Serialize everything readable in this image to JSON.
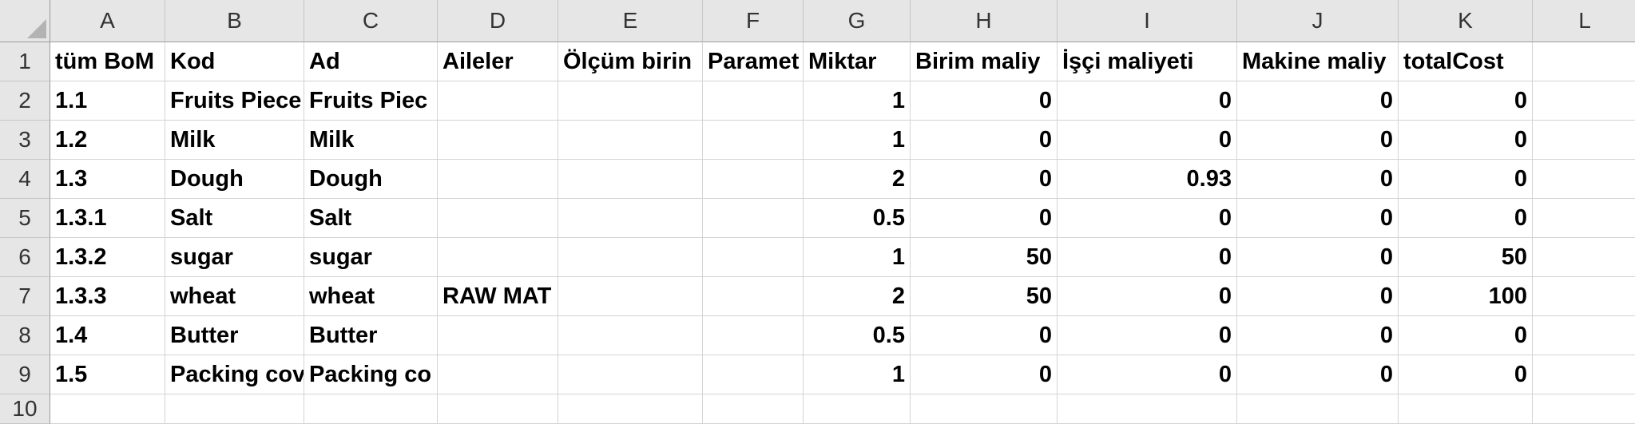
{
  "columns": [
    "A",
    "B",
    "C",
    "D",
    "E",
    "F",
    "G",
    "H",
    "I",
    "J",
    "K",
    "L"
  ],
  "row_numbers": [
    "1",
    "2",
    "3",
    "4",
    "5",
    "6",
    "7",
    "8",
    "9",
    "10"
  ],
  "header_cells": [
    "tüm BoM",
    "Kod",
    "Ad",
    "Aileler",
    "Ölçüm birin",
    "Paramet",
    "Miktar",
    "Birim maliy",
    "İşçi maliyeti",
    "Makine maliy",
    "totalCost",
    ""
  ],
  "rows": [
    [
      "1.1",
      "Fruits Piece",
      "Fruits Piec",
      "",
      "",
      "",
      "1",
      "0",
      "0",
      "0",
      "0",
      ""
    ],
    [
      "1.2",
      "Milk",
      "Milk",
      "",
      "",
      "",
      "1",
      "0",
      "0",
      "0",
      "0",
      ""
    ],
    [
      "1.3",
      "Dough",
      "Dough",
      "",
      "",
      "",
      "2",
      "0",
      "0.93",
      "0",
      "0",
      ""
    ],
    [
      "1.3.1",
      "Salt",
      "Salt",
      "",
      "",
      "",
      "0.5",
      "0",
      "0",
      "0",
      "0",
      ""
    ],
    [
      "1.3.2",
      "sugar",
      "sugar",
      "",
      "",
      "",
      "1",
      "50",
      "0",
      "0",
      "50",
      ""
    ],
    [
      "1.3.3",
      "wheat",
      "wheat",
      "RAW MAT",
      "",
      "",
      "2",
      "50",
      "0",
      "0",
      "100",
      ""
    ],
    [
      "1.4",
      "Butter",
      "Butter",
      "",
      "",
      "",
      "0.5",
      "0",
      "0",
      "0",
      "0",
      ""
    ],
    [
      "1.5",
      "Packing cov",
      "Packing co",
      "",
      "",
      "",
      "1",
      "0",
      "0",
      "0",
      "0",
      ""
    ],
    [
      "",
      "",
      "",
      "",
      "",
      "",
      "",
      "",
      "",
      "",
      "",
      ""
    ]
  ],
  "numeric_columns": [
    6,
    7,
    8,
    9,
    10
  ]
}
